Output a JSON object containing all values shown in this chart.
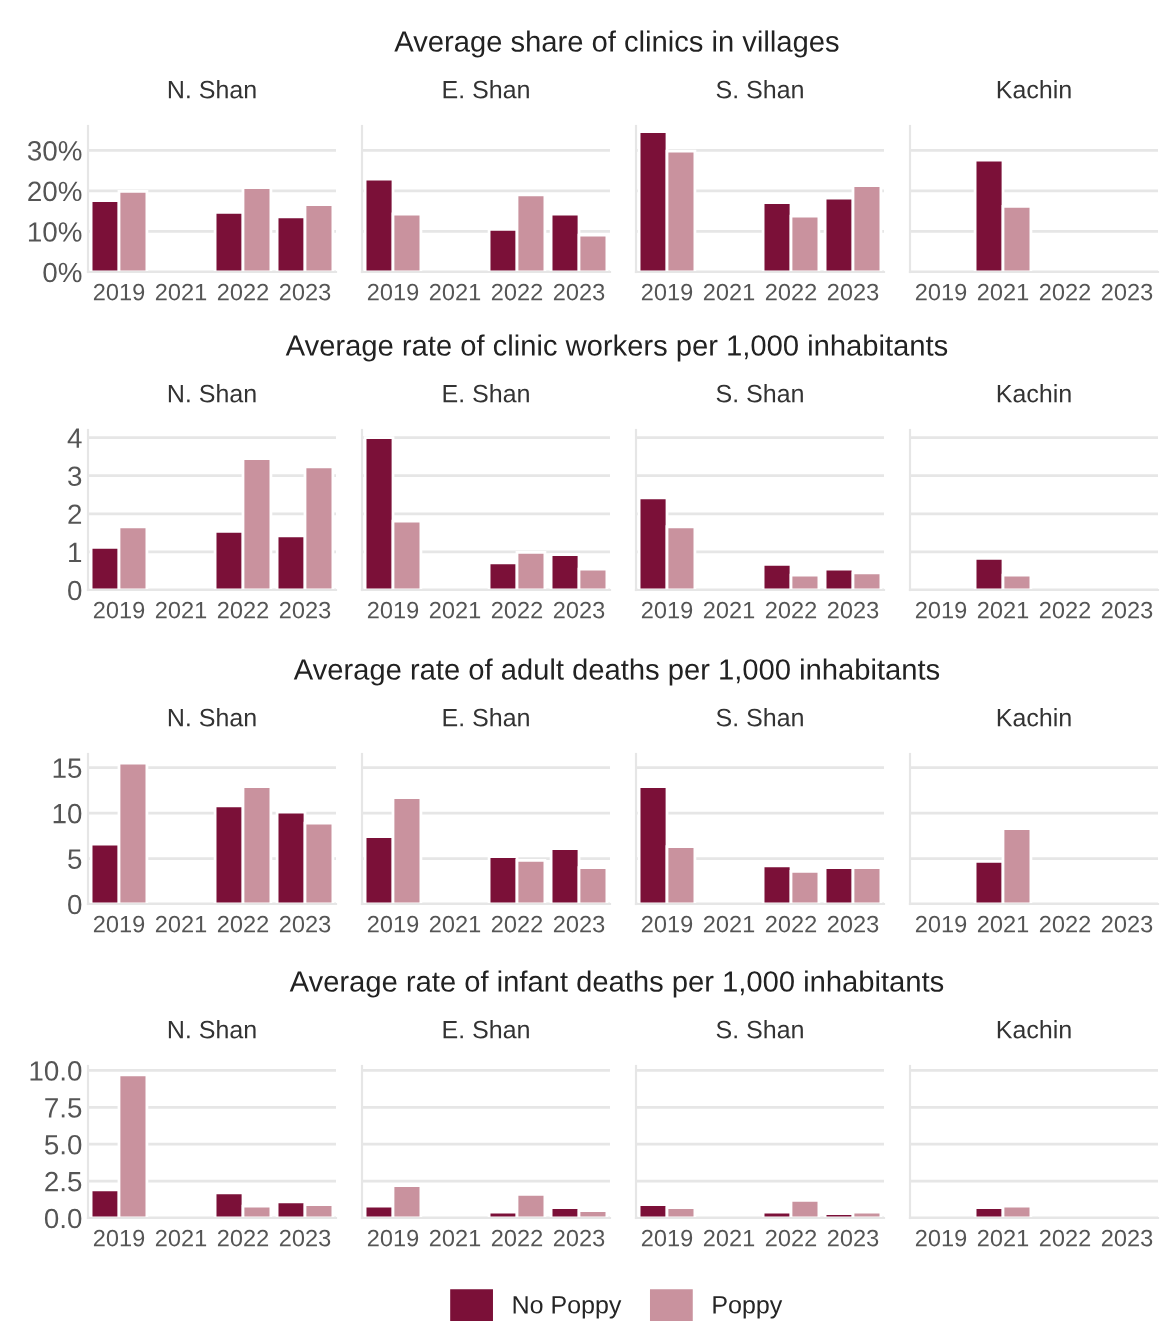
{
  "chart_data": [
    {
      "type": "bar",
      "title": "N. Shan",
      "annotations": [
        "Average share of clinics in villages"
      ],
      "categories": [
        "2019",
        "2021",
        "2022",
        "2023"
      ],
      "series": [
        {
          "name": "No Poppy",
          "color": "#7b1038",
          "values": [
            17.6,
            null,
            14.7,
            13.6
          ]
        },
        {
          "name": "Poppy",
          "color": "#c9929e",
          "values": [
            19.9,
            null,
            20.8,
            16.6
          ]
        }
      ],
      "ylim": [
        0,
        36
      ],
      "yticks": [
        {
          "value": 0,
          "label": "0%"
        },
        {
          "value": 10,
          "label": "10%"
        },
        {
          "value": 20,
          "label": "20%"
        },
        {
          "value": 30,
          "label": "30%"
        }
      ],
      "grid": "y",
      "legend": "bottom"
    },
    {
      "type": "bar",
      "title": "E. Shan",
      "categories": [
        "2019",
        "2021",
        "2022",
        "2023"
      ],
      "series": [
        {
          "color": "#7b1038",
          "values": [
            22.9,
            null,
            10.5,
            14.3
          ]
        },
        {
          "color": "#c9929e",
          "values": [
            14.3,
            null,
            19.0,
            9.1
          ]
        }
      ],
      "ylim": [
        0,
        36
      ],
      "grid": "y",
      "tick_labels": "x"
    },
    {
      "type": "bar",
      "title": "S. Shan",
      "categories": [
        "2019",
        "2021",
        "2022",
        "2023"
      ],
      "series": [
        {
          "color": "#7b1038",
          "values": [
            34.6,
            null,
            17.1,
            18.2
          ]
        },
        {
          "color": "#c9929e",
          "values": [
            29.8,
            null,
            13.8,
            21.3
          ]
        }
      ],
      "ylim": [
        0,
        36
      ],
      "grid": "y",
      "tick_labels": "x"
    },
    {
      "type": "bar",
      "title": "Kachin",
      "categories": [
        "2019",
        "2021",
        "2022",
        "2023"
      ],
      "series": [
        {
          "color": "#7b1038",
          "values": [
            null,
            27.6,
            null,
            null
          ]
        },
        {
          "color": "#c9929e",
          "values": [
            null,
            16.2,
            null,
            null
          ]
        }
      ],
      "ylim": [
        0,
        36
      ],
      "grid": "y",
      "tick_labels": "x"
    },
    {
      "type": "bar",
      "title": "N. Shan",
      "annotations": [
        "Average rate of clinic workers per 1,000 inhabitants"
      ],
      "categories": [
        "2019",
        "2021",
        "2022",
        "2023"
      ],
      "series": [
        {
          "color": "#7b1038",
          "values": [
            1.12,
            null,
            1.54,
            1.42
          ]
        },
        {
          "color": "#c9929e",
          "values": [
            1.66,
            null,
            3.45,
            3.23
          ]
        }
      ],
      "ylim": [
        0,
        4.2
      ],
      "yticks": [
        0,
        1,
        2,
        3,
        4
      ],
      "grid": "y"
    },
    {
      "type": "bar",
      "title": "E. Shan",
      "categories": [
        "2019",
        "2021",
        "2022",
        "2023"
      ],
      "series": [
        {
          "color": "#7b1038",
          "values": [
            4.0,
            null,
            0.71,
            0.93
          ]
        },
        {
          "color": "#c9929e",
          "values": [
            1.81,
            null,
            0.99,
            0.55
          ]
        }
      ],
      "ylim": [
        0,
        4.2
      ],
      "grid": "y",
      "tick_labels": "x"
    },
    {
      "type": "bar",
      "title": "S. Shan",
      "categories": [
        "2019",
        "2021",
        "2022",
        "2023"
      ],
      "series": [
        {
          "color": "#7b1038",
          "values": [
            2.42,
            null,
            0.67,
            0.55
          ]
        },
        {
          "color": "#c9929e",
          "values": [
            1.66,
            null,
            0.39,
            0.45
          ]
        }
      ],
      "ylim": [
        0,
        4.2
      ],
      "grid": "y",
      "tick_labels": "x"
    },
    {
      "type": "bar",
      "title": "Kachin",
      "categories": [
        "2019",
        "2021",
        "2022",
        "2023"
      ],
      "series": [
        {
          "color": "#7b1038",
          "values": [
            null,
            0.83,
            null,
            null
          ]
        },
        {
          "color": "#c9929e",
          "values": [
            null,
            0.39,
            null,
            null
          ]
        }
      ],
      "ylim": [
        0,
        4.2
      ],
      "grid": "y",
      "tick_labels": "x"
    },
    {
      "type": "bar",
      "title": "N. Shan",
      "annotations": [
        "Average rate of adult deaths per 1,000 inhabitants"
      ],
      "categories": [
        "2019",
        "2021",
        "2022",
        "2023"
      ],
      "series": [
        {
          "color": "#7b1038",
          "values": [
            6.6,
            null,
            10.8,
            10.1
          ]
        },
        {
          "color": "#c9929e",
          "values": [
            15.5,
            null,
            12.9,
            8.9
          ]
        }
      ],
      "ylim": [
        0,
        16.5
      ],
      "yticks": [
        0,
        5,
        10,
        15
      ],
      "grid": "y"
    },
    {
      "type": "bar",
      "title": "E. Shan",
      "categories": [
        "2019",
        "2021",
        "2022",
        "2023"
      ],
      "series": [
        {
          "color": "#7b1038",
          "values": [
            7.4,
            null,
            5.2,
            6.1
          ]
        },
        {
          "color": "#c9929e",
          "values": [
            11.7,
            null,
            4.8,
            4.0
          ]
        }
      ],
      "ylim": [
        0,
        16.5
      ],
      "grid": "y",
      "tick_labels": "x"
    },
    {
      "type": "bar",
      "title": "S. Shan",
      "categories": [
        "2019",
        "2021",
        "2022",
        "2023"
      ],
      "series": [
        {
          "color": "#7b1038",
          "values": [
            12.9,
            null,
            4.2,
            4.0
          ]
        },
        {
          "color": "#c9929e",
          "values": [
            6.3,
            null,
            3.6,
            4.0
          ]
        }
      ],
      "ylim": [
        0,
        16.5
      ],
      "grid": "y",
      "tick_labels": "x"
    },
    {
      "type": "bar",
      "title": "Kachin",
      "categories": [
        "2019",
        "2021",
        "2022",
        "2023"
      ],
      "series": [
        {
          "color": "#7b1038",
          "values": [
            null,
            4.7,
            null,
            null
          ]
        },
        {
          "color": "#c9929e",
          "values": [
            null,
            8.3,
            null,
            null
          ]
        }
      ],
      "ylim": [
        0,
        16.5
      ],
      "grid": "y",
      "tick_labels": "x"
    },
    {
      "type": "bar",
      "title": "N. Shan",
      "annotations": [
        "Average rate of infant deaths per 1,000 inhabitants"
      ],
      "categories": [
        "2019",
        "2021",
        "2022",
        "2023"
      ],
      "series": [
        {
          "color": "#7b1038",
          "values": [
            1.9,
            null,
            1.7,
            1.1
          ]
        },
        {
          "color": "#c9929e",
          "values": [
            9.7,
            null,
            0.8,
            0.9
          ]
        }
      ],
      "ylim": [
        0,
        10.3
      ],
      "yticks": [
        {
          "value": 0,
          "label": "0.0"
        },
        2.5,
        {
          "value": 5,
          "label": "5.0"
        },
        7.5,
        {
          "value": 10,
          "label": "10.0"
        }
      ],
      "grid": "y"
    },
    {
      "type": "bar",
      "title": "E. Shan",
      "categories": [
        "2019",
        "2021",
        "2022",
        "2023"
      ],
      "series": [
        {
          "color": "#7b1038",
          "values": [
            0.8,
            null,
            0.4,
            0.7
          ]
        },
        {
          "color": "#c9929e",
          "values": [
            2.2,
            null,
            1.6,
            0.5
          ]
        }
      ],
      "ylim": [
        0,
        10.3
      ],
      "grid": "y",
      "tick_labels": "x"
    },
    {
      "type": "bar",
      "title": "S. Shan",
      "categories": [
        "2019",
        "2021",
        "2022",
        "2023"
      ],
      "series": [
        {
          "color": "#7b1038",
          "values": [
            0.9,
            null,
            0.4,
            0.3
          ]
        },
        {
          "color": "#c9929e",
          "values": [
            0.7,
            null,
            1.2,
            0.4
          ]
        }
      ],
      "ylim": [
        0,
        10.3
      ],
      "grid": "y",
      "tick_labels": "x"
    },
    {
      "type": "bar",
      "title": "Kachin",
      "categories": [
        "2019",
        "2021",
        "2022",
        "2023"
      ],
      "series": [
        {
          "color": "#7b1038",
          "values": [
            null,
            0.7,
            null,
            null
          ]
        },
        {
          "color": "#c9929e",
          "values": [
            null,
            0.8,
            null,
            null
          ]
        }
      ],
      "ylim": [
        0,
        10.3
      ],
      "grid": "y",
      "tick_labels": "x"
    }
  ]
}
